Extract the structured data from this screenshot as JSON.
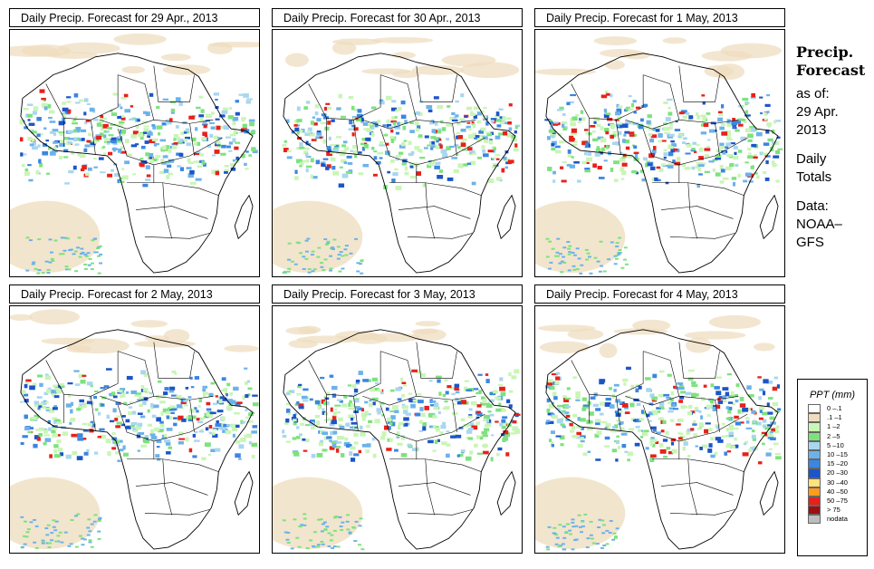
{
  "panels": [
    {
      "title": "Daily Precip. Forecast for  29 Apr., 2013"
    },
    {
      "title": "Daily Precip. Forecast for  30 Apr., 2013"
    },
    {
      "title": "Daily Precip. Forecast for  1 May, 2013"
    },
    {
      "title": "Daily Precip. Forecast for  2 May, 2013"
    },
    {
      "title": "Daily Precip. Forecast for  3 May, 2013"
    },
    {
      "title": "Daily Precip. Forecast for  4 May, 2013"
    }
  ],
  "sidebar": {
    "heading_line1": "Precip.",
    "heading_line2": "Forecast",
    "asof_line1": "as of:",
    "asof_line2": "29 Apr.",
    "asof_line3": "2013",
    "totals_line1": "Daily",
    "totals_line2": "Totals",
    "data_line1": "Data:",
    "data_line2": "NOAA–",
    "data_line3": "GFS"
  },
  "legend": {
    "title": "PPT (mm)",
    "items": [
      {
        "label": "0 –.1",
        "color": "#ffffff"
      },
      {
        "label": ".1 –1",
        "color": "#eedcbc"
      },
      {
        "label": "1 –2",
        "color": "#c9f5b6"
      },
      {
        "label": "2 –5",
        "color": "#7de27d"
      },
      {
        "label": "5 –10",
        "color": "#a9d6f0"
      },
      {
        "label": "10 –15",
        "color": "#6cb2ea"
      },
      {
        "label": "15 –20",
        "color": "#3b86e0"
      },
      {
        "label": "20 –30",
        "color": "#1c55c8"
      },
      {
        "label": "30 –40",
        "color": "#ffe27a"
      },
      {
        "label": "40 –50",
        "color": "#ff9c1e"
      },
      {
        "label": "50 –75",
        "color": "#e8201a"
      },
      {
        "label": "> 75",
        "color": "#9c0f10"
      },
      {
        "label": "nodata",
        "color": "#bdbdbd"
      }
    ]
  }
}
